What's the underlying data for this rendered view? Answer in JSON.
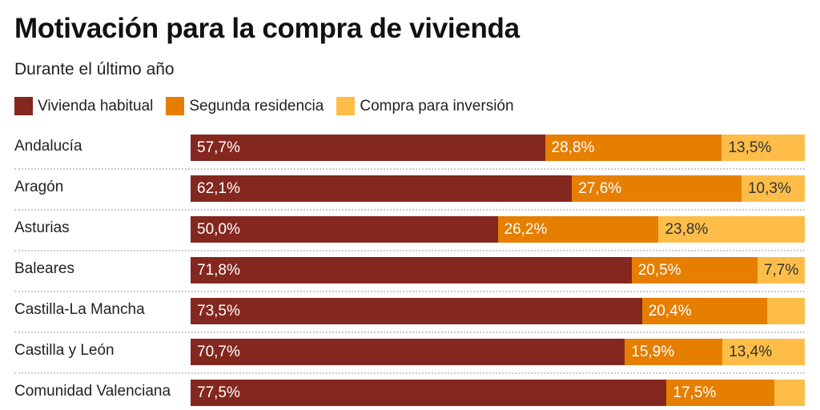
{
  "title": "Motivación para la compra de vivienda",
  "subtitle": "Durante el último año",
  "chart_data": {
    "type": "bar",
    "orientation": "horizontal",
    "stacked": true,
    "xlim": [
      0,
      100
    ],
    "categories": [
      "Andalucía",
      "Aragón",
      "Asturias",
      "Baleares",
      "Castilla-La Mancha",
      "Castilla y León",
      "Comunidad Valenciana"
    ],
    "series": [
      {
        "name": "Vivienda habitual",
        "color": "#84271f",
        "label_color": "#ffffff",
        "values": [
          57.7,
          62.1,
          50.0,
          71.8,
          73.5,
          70.7,
          77.5
        ],
        "labels": [
          "57,7%",
          "62,1%",
          "50,0%",
          "71,8%",
          "73,5%",
          "70,7%",
          "77,5%"
        ]
      },
      {
        "name": "Segunda residencia",
        "color": "#e67e00",
        "label_color": "#ffffff",
        "values": [
          28.8,
          27.6,
          26.2,
          20.5,
          20.4,
          15.9,
          17.5
        ],
        "labels": [
          "28,8%",
          "27,6%",
          "26,2%",
          "20,5%",
          "20,4%",
          "15,9%",
          "17,5%"
        ]
      },
      {
        "name": "Compra para inversión",
        "color": "#fdbd48",
        "label_color": "#333333",
        "values": [
          13.5,
          10.3,
          23.8,
          7.7,
          6.1,
          13.4,
          5.0
        ],
        "labels": [
          "13,5%",
          "10,3%",
          "23,8%",
          "7,7%",
          "",
          "13,4%",
          ""
        ]
      }
    ],
    "legend": "top-left",
    "grid": false
  }
}
